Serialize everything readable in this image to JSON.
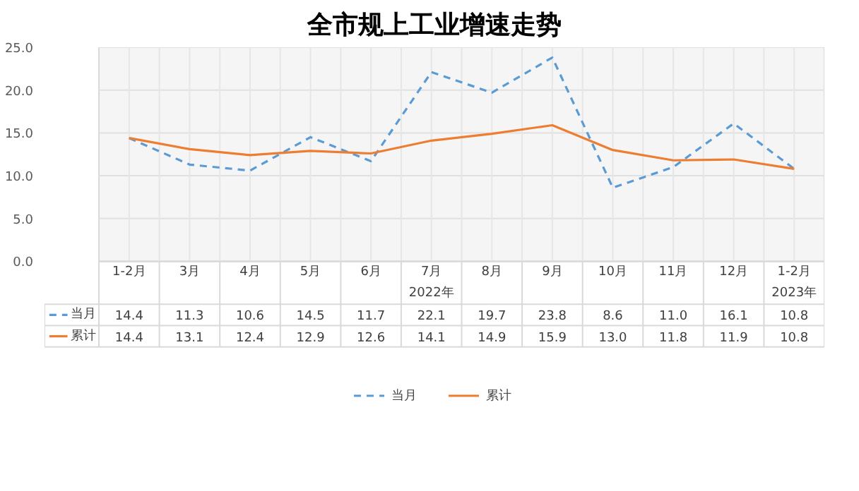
{
  "chart_data": {
    "type": "line",
    "title": "全市规上工业增速走势",
    "categories": [
      "1-2月",
      "3月",
      "4月",
      "5月",
      "6月",
      "7月",
      "8月",
      "9月",
      "10月",
      "11月",
      "12月",
      "1-2月"
    ],
    "series": [
      {
        "name": "当月",
        "color": "#5b9bd5",
        "line_style": "dashed",
        "values": [
          14.4,
          11.3,
          10.6,
          14.5,
          11.7,
          22.1,
          19.7,
          23.8,
          8.6,
          11.0,
          16.1,
          10.8
        ],
        "value_labels": [
          "14.4",
          "11.3",
          "10.6",
          "14.5",
          "11.7",
          "22.1",
          "19.7",
          "23.8",
          "8.6",
          "11.0",
          "16.1",
          "10.8"
        ]
      },
      {
        "name": "累计",
        "color": "#ed7d31",
        "line_style": "solid",
        "values": [
          14.4,
          13.1,
          12.4,
          12.9,
          12.6,
          14.1,
          14.9,
          15.9,
          13.0,
          11.8,
          11.9,
          10.8
        ],
        "value_labels": [
          "14.4",
          "13.1",
          "12.4",
          "12.9",
          "12.6",
          "14.1",
          "14.9",
          "15.9",
          "13.0",
          "11.8",
          "11.9",
          "10.8"
        ]
      }
    ],
    "annotations": [
      "2022年",
      "2023年"
    ],
    "ylim": [
      0,
      25
    ],
    "yticks": [
      {
        "value": 0,
        "label": "0.0"
      },
      {
        "value": 5,
        "label": "5.0"
      },
      {
        "value": 10,
        "label": "10.0"
      },
      {
        "value": 15,
        "label": "15.0"
      },
      {
        "value": 20,
        "label": "20.0"
      },
      {
        "value": 25,
        "label": "25.0"
      }
    ],
    "grid": true,
    "legend": "bottom",
    "marker": "none"
  }
}
